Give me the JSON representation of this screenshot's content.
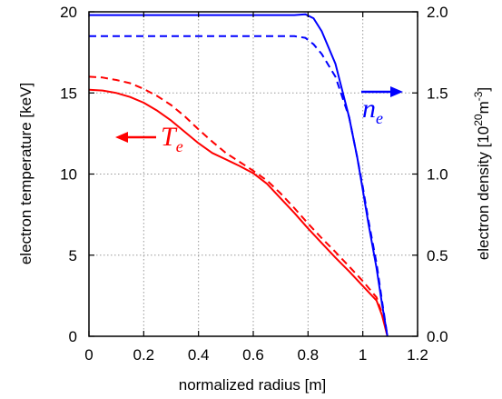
{
  "chart_data": {
    "type": "line",
    "title": "",
    "xlabel": "normalized radius [m]",
    "ylabel_left": "electron temperature [keV]",
    "ylabel_right": {
      "base": "electron density [10",
      "exp1": "20",
      "mid": "m",
      "exp2": "-3",
      "end": "]"
    },
    "xlim": [
      0,
      1.2
    ],
    "ylim_left": [
      0,
      20
    ],
    "ylim_right": [
      0,
      2.0
    ],
    "grid": true,
    "x_ticks": [
      "0",
      "0.2",
      "0.4",
      "0.6",
      "0.8",
      "1",
      "1.2"
    ],
    "y_left_ticks": [
      "0",
      "5",
      "10",
      "15",
      "20"
    ],
    "y_right_ticks": [
      "0.0",
      "0.5",
      "1.0",
      "1.5",
      "2.0"
    ],
    "colors": {
      "temperature": "#ff0000",
      "density": "#0000ff",
      "grid": "#999999"
    },
    "annotations": [
      {
        "main": "T",
        "sub": "e",
        "arrow": "left",
        "series": "temperature"
      },
      {
        "main": "n",
        "sub": "e",
        "arrow": "right",
        "series": "density"
      }
    ],
    "series": [
      {
        "axis": "left",
        "quantity": "temperature",
        "style": "solid",
        "points": [
          [
            0,
            15.2
          ],
          [
            0.05,
            15.15
          ],
          [
            0.1,
            15.0
          ],
          [
            0.15,
            14.75
          ],
          [
            0.2,
            14.4
          ],
          [
            0.25,
            13.9
          ],
          [
            0.3,
            13.3
          ],
          [
            0.35,
            12.6
          ],
          [
            0.4,
            11.9
          ],
          [
            0.45,
            11.3
          ],
          [
            0.5,
            10.9
          ],
          [
            0.55,
            10.5
          ],
          [
            0.6,
            10.05
          ],
          [
            0.65,
            9.4
          ],
          [
            0.7,
            8.5
          ],
          [
            0.75,
            7.6
          ],
          [
            0.8,
            6.65
          ],
          [
            0.85,
            5.75
          ],
          [
            0.9,
            4.85
          ],
          [
            0.95,
            4.0
          ],
          [
            1.0,
            3.1
          ],
          [
            1.05,
            2.2
          ],
          [
            1.07,
            1.3
          ],
          [
            1.09,
            0
          ]
        ]
      },
      {
        "axis": "left",
        "quantity": "temperature",
        "style": "dashed",
        "points": [
          [
            0,
            16.0
          ],
          [
            0.05,
            15.95
          ],
          [
            0.1,
            15.8
          ],
          [
            0.15,
            15.6
          ],
          [
            0.2,
            15.25
          ],
          [
            0.25,
            14.8
          ],
          [
            0.3,
            14.25
          ],
          [
            0.35,
            13.55
          ],
          [
            0.4,
            12.75
          ],
          [
            0.45,
            12.0
          ],
          [
            0.5,
            11.3
          ],
          [
            0.55,
            10.75
          ],
          [
            0.6,
            10.2
          ],
          [
            0.65,
            9.6
          ],
          [
            0.7,
            8.8
          ],
          [
            0.75,
            7.9
          ],
          [
            0.8,
            6.95
          ],
          [
            0.85,
            6.05
          ],
          [
            0.9,
            5.2
          ],
          [
            0.95,
            4.3
          ],
          [
            1.0,
            3.4
          ],
          [
            1.05,
            2.4
          ],
          [
            1.07,
            1.4
          ],
          [
            1.09,
            0
          ]
        ]
      },
      {
        "axis": "right",
        "quantity": "density",
        "style": "solid",
        "points": [
          [
            0,
            1.98
          ],
          [
            0.2,
            1.98
          ],
          [
            0.4,
            1.98
          ],
          [
            0.6,
            1.98
          ],
          [
            0.75,
            1.98
          ],
          [
            0.79,
            1.985
          ],
          [
            0.82,
            1.96
          ],
          [
            0.85,
            1.88
          ],
          [
            0.9,
            1.68
          ],
          [
            0.95,
            1.35
          ],
          [
            0.98,
            1.1
          ],
          [
            1.0,
            0.9
          ],
          [
            1.02,
            0.7
          ],
          [
            1.05,
            0.42
          ],
          [
            1.07,
            0.2
          ],
          [
            1.09,
            0
          ]
        ]
      },
      {
        "axis": "right",
        "quantity": "density",
        "style": "dashed",
        "points": [
          [
            0,
            1.85
          ],
          [
            0.2,
            1.85
          ],
          [
            0.4,
            1.85
          ],
          [
            0.6,
            1.85
          ],
          [
            0.75,
            1.85
          ],
          [
            0.79,
            1.84
          ],
          [
            0.82,
            1.8
          ],
          [
            0.85,
            1.74
          ],
          [
            0.9,
            1.6
          ],
          [
            0.95,
            1.35
          ],
          [
            0.98,
            1.1
          ],
          [
            1.0,
            0.92
          ],
          [
            1.02,
            0.72
          ],
          [
            1.05,
            0.45
          ],
          [
            1.07,
            0.22
          ],
          [
            1.09,
            0
          ]
        ]
      }
    ]
  }
}
